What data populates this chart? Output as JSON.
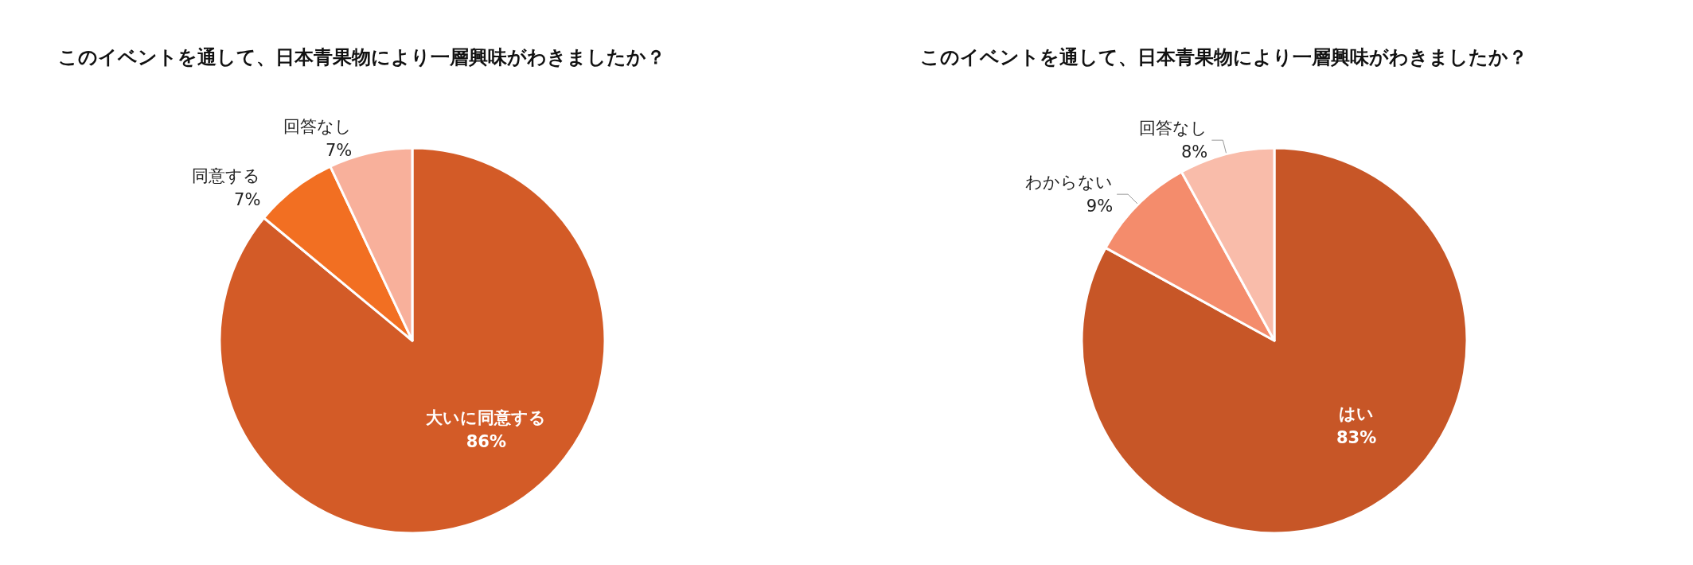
{
  "chart_data": [
    {
      "type": "pie",
      "title": "このイベントを通して、日本青果物により一層興味がわきましたか？",
      "categories": [
        "大いに同意する",
        "同意する",
        "回答なし"
      ],
      "values": [
        86,
        7,
        7
      ],
      "value_labels": [
        "86%",
        "7%",
        "7%"
      ],
      "colors": [
        "#d35b27",
        "#f26f22",
        "#f8b09b"
      ],
      "legend": false
    },
    {
      "type": "pie",
      "title": "このイベントを通して、日本青果物により一層興味がわきましたか？",
      "categories": [
        "はい",
        "わからない",
        "回答なし"
      ],
      "values": [
        83,
        9,
        8
      ],
      "value_labels": [
        "83%",
        "9%",
        "8%"
      ],
      "colors": [
        "#c75627",
        "#f48c6c",
        "#f9bcaa"
      ],
      "legend": false
    }
  ]
}
